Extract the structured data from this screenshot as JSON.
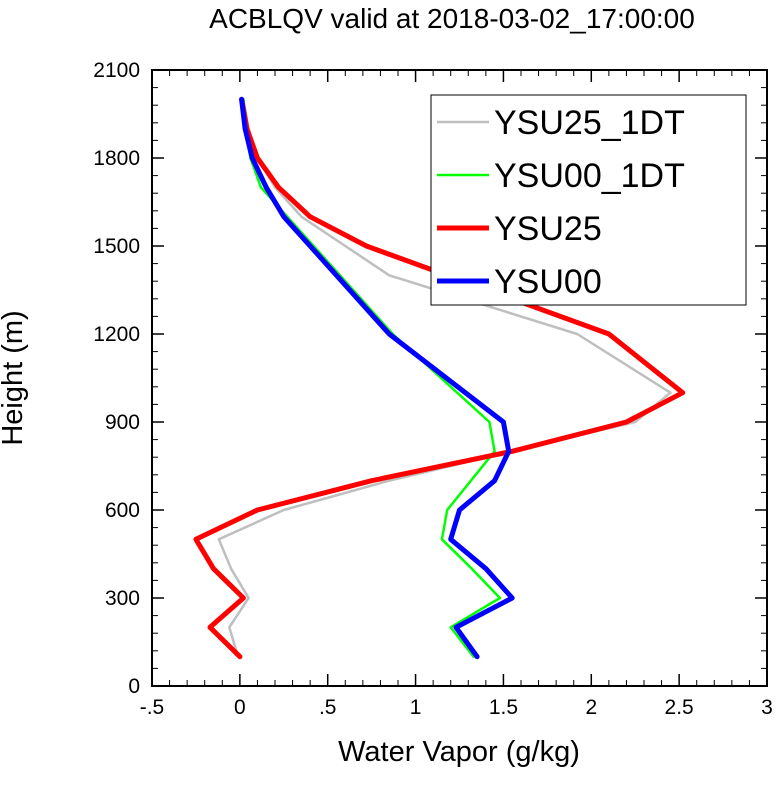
{
  "chart_data": {
    "type": "line",
    "title": "ACBLQV valid at 2018-03-02_17:00:00",
    "xlabel": "Water Vapor (g/kg)",
    "ylabel": "Height (m)",
    "xlim": [
      -0.5,
      3
    ],
    "ylim": [
      0,
      2100
    ],
    "x_ticks": [
      -0.5,
      0,
      0.5,
      1,
      1.5,
      2,
      2.5,
      3
    ],
    "x_tick_labels": [
      "-.5",
      "0",
      ".5",
      "1",
      "1.5",
      "2",
      "2.5",
      "3"
    ],
    "y_ticks": [
      0,
      300,
      600,
      900,
      1200,
      1500,
      1800,
      2100
    ],
    "y_tick_labels": [
      "0",
      "300",
      "600",
      "900",
      "1200",
      "1500",
      "1800",
      "2100"
    ],
    "legend_position": "top-right",
    "series": [
      {
        "name": "YSU25_1DT",
        "color": "#bfbfbf",
        "width": 2.5,
        "points": [
          [
            -0.01,
            100
          ],
          [
            -0.06,
            200
          ],
          [
            0.05,
            300
          ],
          [
            -0.05,
            400
          ],
          [
            -0.12,
            500
          ],
          [
            0.25,
            600
          ],
          [
            0.85,
            700
          ],
          [
            1.55,
            800
          ],
          [
            2.25,
            900
          ],
          [
            2.45,
            1000
          ],
          [
            1.92,
            1200
          ],
          [
            0.85,
            1400
          ],
          [
            0.6,
            1500
          ],
          [
            0.35,
            1600
          ],
          [
            0.2,
            1700
          ],
          [
            0.1,
            1800
          ],
          [
            0.05,
            1900
          ],
          [
            0.02,
            2000
          ]
        ]
      },
      {
        "name": "YSU00_1DT",
        "color": "#00ff00",
        "width": 2.5,
        "points": [
          [
            1.33,
            100
          ],
          [
            1.2,
            200
          ],
          [
            1.48,
            300
          ],
          [
            1.32,
            400
          ],
          [
            1.15,
            500
          ],
          [
            1.18,
            600
          ],
          [
            1.45,
            800
          ],
          [
            1.42,
            900
          ],
          [
            0.87,
            1200
          ],
          [
            0.27,
            1600
          ],
          [
            0.12,
            1700
          ],
          [
            0.06,
            1800
          ],
          [
            0.03,
            1900
          ],
          [
            0.02,
            2000
          ]
        ]
      },
      {
        "name": "YSU25",
        "color": "#ff0000",
        "width": 5,
        "points": [
          [
            0,
            100
          ],
          [
            -0.17,
            200
          ],
          [
            0.02,
            300
          ],
          [
            -0.15,
            400
          ],
          [
            -0.25,
            500
          ],
          [
            0.1,
            600
          ],
          [
            0.75,
            700
          ],
          [
            1.55,
            800
          ],
          [
            2.2,
            900
          ],
          [
            2.52,
            1000
          ],
          [
            2.1,
            1200
          ],
          [
            0.72,
            1500
          ],
          [
            0.4,
            1600
          ],
          [
            0.22,
            1700
          ],
          [
            0.1,
            1800
          ],
          [
            0.04,
            1900
          ],
          [
            0.01,
            2000
          ]
        ]
      },
      {
        "name": "YSU00",
        "color": "#0000ff",
        "width": 5,
        "points": [
          [
            1.35,
            100
          ],
          [
            1.23,
            200
          ],
          [
            1.55,
            300
          ],
          [
            1.4,
            400
          ],
          [
            1.2,
            500
          ],
          [
            1.25,
            600
          ],
          [
            1.45,
            700
          ],
          [
            1.53,
            800
          ],
          [
            1.5,
            900
          ],
          [
            0.85,
            1200
          ],
          [
            0.25,
            1600
          ],
          [
            0.15,
            1700
          ],
          [
            0.07,
            1800
          ],
          [
            0.03,
            1900
          ],
          [
            0.01,
            2000
          ]
        ]
      }
    ]
  }
}
